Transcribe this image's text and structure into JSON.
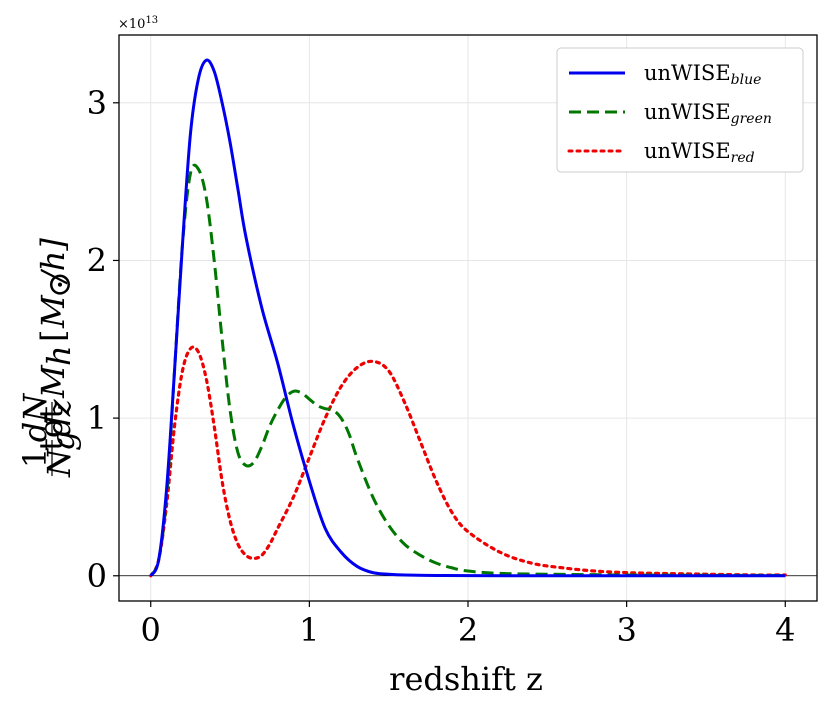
{
  "chart_data": {
    "type": "line",
    "xlabel": "redshift z",
    "ylabel": "1/N_g^tot dN/dz M_h [M_⊙/h]",
    "ylabel_parts": {
      "frac1_num": "1",
      "frac1_den": "N",
      "frac1_den_sub": "g",
      "frac1_den_sup": "tot",
      "frac2_num": "dN",
      "frac2_den": "dz",
      "m": "M",
      "m_sub": "h",
      "units_open": "[",
      "units_m": "M",
      "units_sun": "⊙",
      "units_rest": "/h]"
    },
    "y_scale_label": "×10",
    "y_scale_exp": "13",
    "xlim": [
      -0.2,
      4.2
    ],
    "ylim": [
      -0.16,
      3.43
    ],
    "xticks": [
      0,
      1,
      2,
      3,
      4
    ],
    "xtick_labels": [
      "0",
      "1",
      "2",
      "3",
      "4"
    ],
    "yticks": [
      0,
      1,
      2,
      3
    ],
    "ytick_labels": [
      "0",
      "1",
      "2",
      "3"
    ],
    "grid": true,
    "zero_line": true,
    "legend_position": "top-right",
    "series": [
      {
        "name": "unWISE",
        "name_sub": "blue",
        "color": "#0000ee",
        "style": "solid",
        "x": [
          0,
          0.05,
          0.1,
          0.15,
          0.2,
          0.25,
          0.3,
          0.35,
          0.4,
          0.45,
          0.5,
          0.55,
          0.6,
          0.7,
          0.8,
          0.9,
          1.0,
          1.1,
          1.2,
          1.3,
          1.4,
          1.5,
          1.6,
          1.8,
          2.0,
          2.5,
          3.0,
          3.5,
          4.0
        ],
        "y": [
          0,
          0.1,
          0.55,
          1.3,
          2.1,
          2.8,
          3.15,
          3.27,
          3.2,
          3.0,
          2.75,
          2.45,
          2.15,
          1.7,
          1.35,
          0.95,
          0.6,
          0.3,
          0.15,
          0.06,
          0.02,
          0.01,
          0.005,
          0.002,
          0.001,
          0,
          0,
          0,
          0
        ]
      },
      {
        "name": "unWISE",
        "name_sub": "green",
        "color": "#007700",
        "style": "dashed",
        "x": [
          0,
          0.05,
          0.1,
          0.15,
          0.2,
          0.25,
          0.3,
          0.35,
          0.4,
          0.45,
          0.5,
          0.55,
          0.6,
          0.65,
          0.7,
          0.75,
          0.8,
          0.85,
          0.9,
          0.95,
          1.0,
          1.05,
          1.1,
          1.15,
          1.2,
          1.25,
          1.3,
          1.4,
          1.5,
          1.6,
          1.7,
          1.8,
          1.9,
          2.0,
          2.2,
          2.5,
          3.0,
          3.5,
          4.0
        ],
        "y": [
          0,
          0.1,
          0.5,
          1.3,
          2.1,
          2.55,
          2.58,
          2.4,
          2.0,
          1.5,
          1.05,
          0.78,
          0.7,
          0.72,
          0.82,
          0.95,
          1.05,
          1.13,
          1.17,
          1.16,
          1.12,
          1.08,
          1.06,
          1.05,
          1.0,
          0.9,
          0.75,
          0.5,
          0.32,
          0.2,
          0.13,
          0.08,
          0.05,
          0.03,
          0.015,
          0.01,
          0.005,
          0.003,
          0.002
        ]
      },
      {
        "name": "unWISE",
        "name_sub": "red",
        "color": "#ee0000",
        "style": "dotted",
        "x": [
          0,
          0.05,
          0.1,
          0.15,
          0.2,
          0.25,
          0.3,
          0.35,
          0.4,
          0.45,
          0.5,
          0.55,
          0.6,
          0.65,
          0.7,
          0.75,
          0.8,
          0.9,
          1.0,
          1.1,
          1.2,
          1.3,
          1.4,
          1.5,
          1.6,
          1.7,
          1.8,
          1.9,
          2.0,
          2.2,
          2.4,
          2.6,
          2.8,
          3.0,
          3.2,
          3.5,
          3.8,
          4.0
        ],
        "y": [
          0,
          0.1,
          0.45,
          0.95,
          1.3,
          1.44,
          1.42,
          1.25,
          0.95,
          0.6,
          0.35,
          0.2,
          0.13,
          0.11,
          0.13,
          0.2,
          0.3,
          0.5,
          0.75,
          1.0,
          1.2,
          1.32,
          1.36,
          1.3,
          1.1,
          0.85,
          0.6,
          0.4,
          0.28,
          0.15,
          0.08,
          0.05,
          0.03,
          0.02,
          0.015,
          0.01,
          0.005,
          0.005
        ]
      }
    ]
  }
}
